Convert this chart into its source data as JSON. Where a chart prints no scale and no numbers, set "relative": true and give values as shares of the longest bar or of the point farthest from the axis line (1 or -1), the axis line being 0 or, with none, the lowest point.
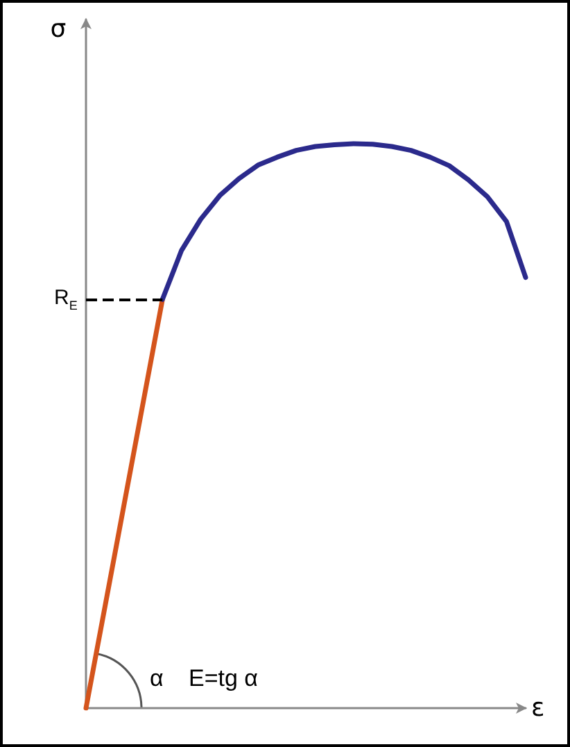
{
  "chart_data": {
    "type": "line",
    "relative": true,
    "xlabel": "ε",
    "ylabel": "σ",
    "marker": "none",
    "line_style": "solid",
    "categories": [
      null,
      null,
      null,
      null,
      null,
      null,
      null,
      null,
      null,
      null,
      null,
      null,
      null,
      null,
      null,
      null,
      null,
      null,
      null,
      null,
      null,
      null,
      null,
      null
    ],
    "series": [
      {
        "color": "#d4541c",
        "values": [
          0,
          0.181,
          0.362,
          0.543,
          0.724,
          null,
          null,
          null,
          null,
          null,
          null,
          null,
          null,
          null,
          null,
          null,
          null,
          null,
          null,
          null,
          null,
          null,
          null,
          null
        ]
      },
      {
        "color": "#2b2a8c",
        "values": [
          null,
          null,
          null,
          null,
          0.724,
          0.811,
          0.866,
          0.908,
          0.938,
          0.962,
          0.976,
          0.988,
          0.995,
          0.998,
          1,
          0.999,
          0.995,
          0.988,
          0.976,
          0.961,
          0.936,
          0.906,
          0.862,
          0.763
        ]
      }
    ],
    "ref_lines": [
      {
        "axis": "y",
        "value": 0.724,
        "label": "R$_{E}$",
        "color": "#000000",
        "line_style": "dashed"
      }
    ],
    "annotations": [
      "α",
      "E=tg α"
    ]
  }
}
